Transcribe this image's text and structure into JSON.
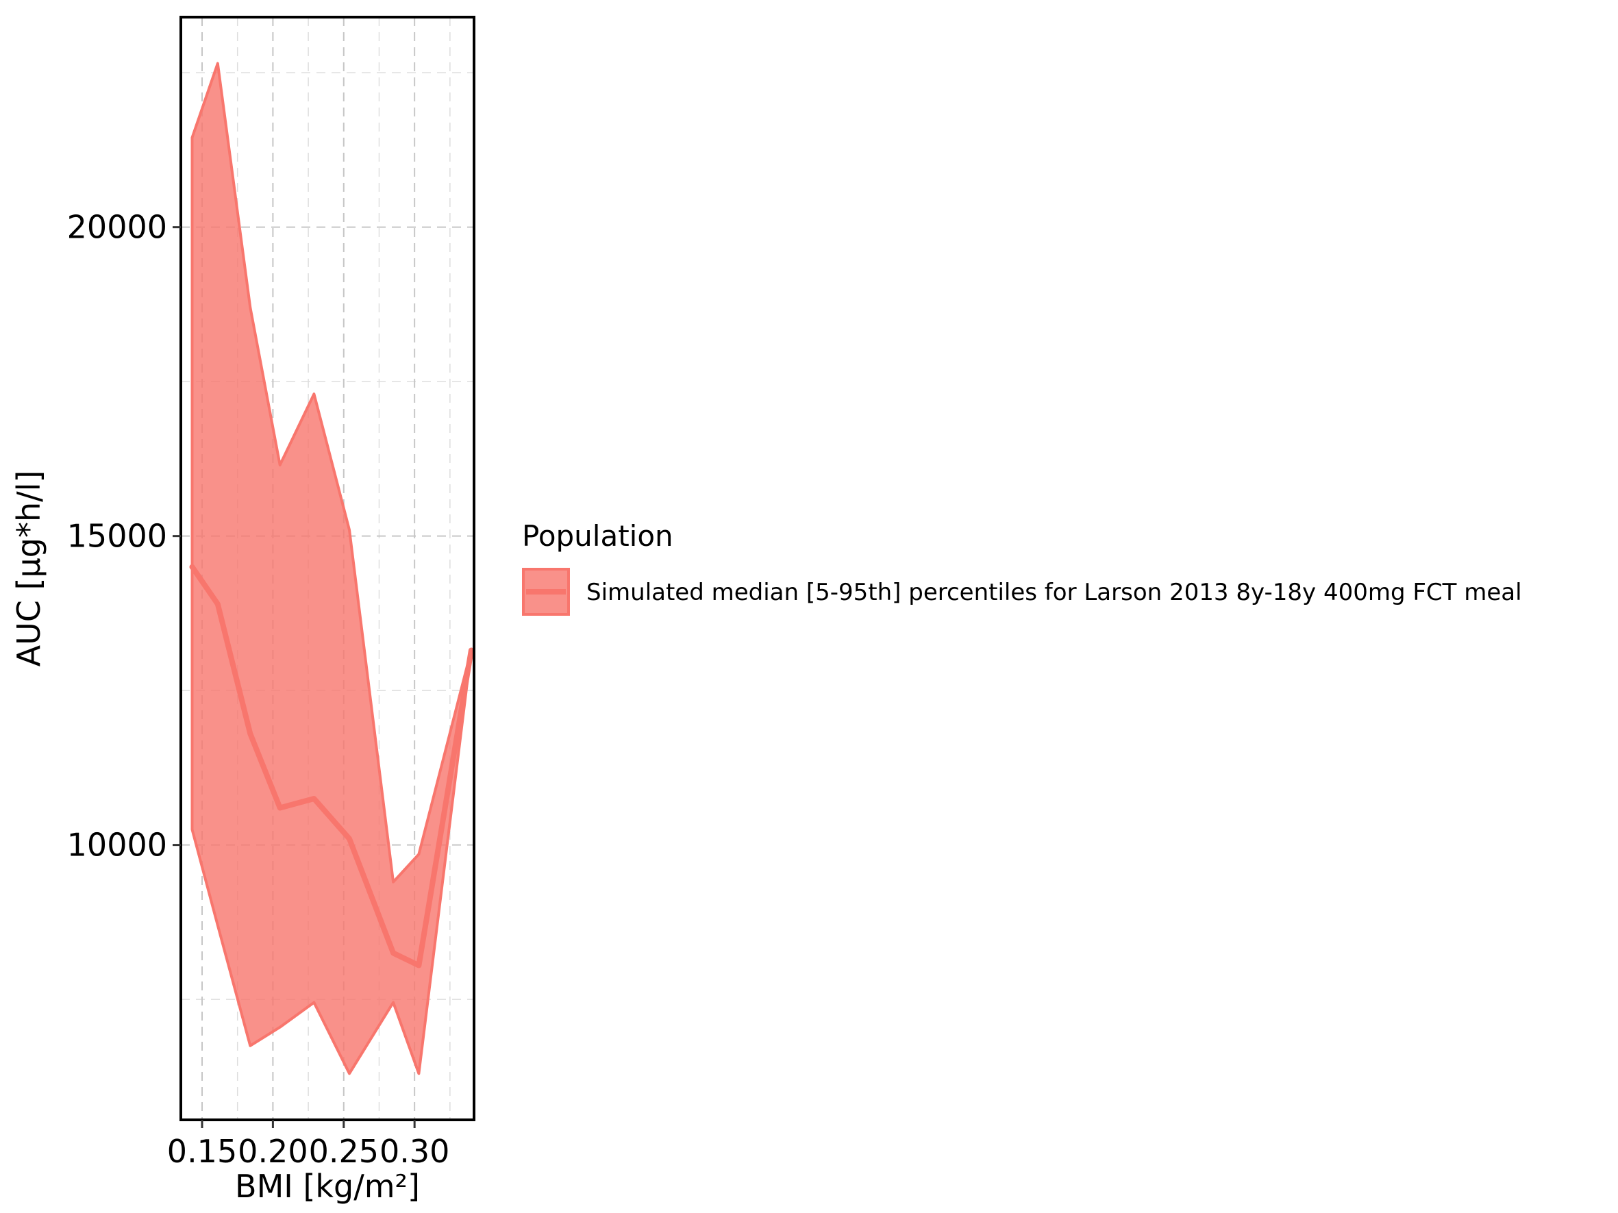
{
  "chart_data": {
    "type": "area",
    "xlabel": "BMI [kg/m²]",
    "ylabel": "AUC [µg*h/l]",
    "xlim": [
      0.135,
      0.342
    ],
    "ylim": [
      5550,
      23400
    ],
    "x_ticks": [
      0.15,
      0.2,
      0.25,
      0.3
    ],
    "x_tick_labels": [
      "0.15",
      "0.20",
      "0.25",
      "0.30"
    ],
    "x_minor_ticks": [
      0.175,
      0.225,
      0.275,
      0.325
    ],
    "y_ticks": [
      10000,
      15000,
      20000
    ],
    "y_tick_labels": [
      "10000",
      "15000",
      "20000"
    ],
    "y_minor_ticks": [
      7500,
      12500,
      17500,
      22500
    ],
    "grid": true,
    "legend": {
      "title": "Population",
      "placement": "right",
      "entries": [
        "Simulated median [5-95th] percentiles for Larson 2013 8y-18y 400mg FCT meal"
      ]
    },
    "series": [
      {
        "name": "Simulated median [5-95th] percentiles for Larson 2013 8y-18y 400mg FCT meal",
        "color": "#F8766D",
        "x": [
          0.143,
          0.161,
          0.184,
          0.205,
          0.229,
          0.254,
          0.285,
          0.303,
          0.34
        ],
        "median": [
          14500,
          13900,
          11800,
          10600,
          10750,
          10100,
          8250,
          8050,
          13150
        ],
        "lower": [
          10250,
          8700,
          6750,
          7050,
          7450,
          6300,
          7450,
          6300,
          13150
        ],
        "upper": [
          21450,
          22650,
          18700,
          16150,
          17300,
          15100,
          9400,
          9850,
          13150
        ]
      }
    ]
  }
}
